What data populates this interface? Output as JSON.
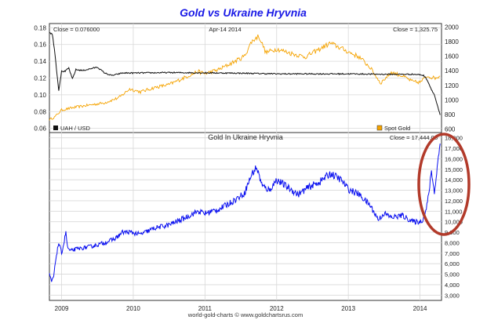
{
  "title": "Gold vs Ukraine Hryvnia",
  "footer": "world-gold-charts © www.goldchartsrus.com",
  "colors": {
    "title": "#1a1ae6",
    "uah_line": "#111111",
    "gold_line": "#f5a300",
    "gold_uah_line": "#0a10f0",
    "grid": "#d8d8d8",
    "highlight_ellipse": "#b23a2a"
  },
  "chart_data": [
    {
      "type": "line",
      "panel": "top",
      "title": "Gold vs Ukraine Hryvnia",
      "info_left": "Close = 0.076000",
      "info_center": "Apr-14  2014",
      "info_right": "Close = 1,325.75",
      "x_tick_labels": [
        "2009",
        "2010",
        "2011",
        "2012",
        "2013",
        "2014"
      ],
      "x_range": [
        2008.83,
        2014.3
      ],
      "y_left": {
        "range": [
          0.055,
          0.185
        ],
        "ticks": [
          0.06,
          0.08,
          0.1,
          0.12,
          0.14,
          0.16,
          0.18
        ],
        "tick_labels": [
          "0.06",
          "0.08",
          "0.10",
          "0.12",
          "0.14",
          "0.16",
          "0.18"
        ]
      },
      "y_right": {
        "range": [
          550,
          2050
        ],
        "ticks": [
          600,
          800,
          1000,
          1200,
          1400,
          1600,
          1800,
          2000
        ],
        "tick_labels": [
          "600",
          "800",
          "1000",
          "1200",
          "1400",
          "1600",
          "1800",
          "2000"
        ]
      },
      "grid": true,
      "legend": [
        {
          "label": "UAH / USD",
          "position": "bottom-left"
        },
        {
          "label": "Spot Gold",
          "position": "bottom-right"
        }
      ],
      "series": [
        {
          "name": "UAH / USD",
          "axis": "left",
          "x": [
            2008.83,
            2008.87,
            2008.9,
            2008.93,
            2008.96,
            2009.0,
            2009.05,
            2009.1,
            2009.15,
            2009.2,
            2009.3,
            2009.4,
            2009.5,
            2009.6,
            2009.7,
            2009.85,
            2010.0,
            2010.5,
            2011.0,
            2011.5,
            2012.0,
            2012.5,
            2013.0,
            2013.5,
            2013.9,
            2014.0,
            2014.05,
            2014.1,
            2014.15,
            2014.2,
            2014.25,
            2014.28
          ],
          "values": [
            0.175,
            0.172,
            0.155,
            0.13,
            0.105,
            0.128,
            0.128,
            0.132,
            0.119,
            0.13,
            0.129,
            0.131,
            0.133,
            0.126,
            0.123,
            0.126,
            0.126,
            0.1265,
            0.1262,
            0.1258,
            0.125,
            0.125,
            0.125,
            0.1245,
            0.1245,
            0.124,
            0.123,
            0.118,
            0.108,
            0.1,
            0.085,
            0.076
          ]
        },
        {
          "name": "Spot Gold",
          "axis": "right",
          "x": [
            2008.83,
            2008.9,
            2009.0,
            2009.2,
            2009.4,
            2009.6,
            2009.8,
            2009.95,
            2010.1,
            2010.3,
            2010.5,
            2010.7,
            2010.9,
            2011.0,
            2011.2,
            2011.4,
            2011.55,
            2011.65,
            2011.75,
            2011.85,
            2012.0,
            2012.2,
            2012.4,
            2012.6,
            2012.75,
            2012.9,
            2013.0,
            2013.15,
            2013.3,
            2013.45,
            2013.6,
            2013.75,
            2013.9,
            2014.0,
            2014.1,
            2014.2,
            2014.28
          ],
          "values": [
            730,
            760,
            860,
            900,
            930,
            960,
            1030,
            1150,
            1110,
            1170,
            1210,
            1300,
            1390,
            1360,
            1420,
            1520,
            1600,
            1800,
            1880,
            1650,
            1700,
            1640,
            1590,
            1700,
            1780,
            1710,
            1660,
            1590,
            1450,
            1230,
            1380,
            1330,
            1250,
            1240,
            1330,
            1300,
            1326
          ]
        }
      ]
    },
    {
      "type": "line",
      "panel": "bottom",
      "title": "Gold In Ukraine Hryvnia",
      "info_right": "Close = 17,444.08",
      "x_tick_labels": [
        "2009",
        "2010",
        "2011",
        "2012",
        "2013",
        "2014"
      ],
      "x_range": [
        2008.83,
        2014.3
      ],
      "y_right": {
        "range": [
          2500,
          18500
        ],
        "ticks": [
          3000,
          4000,
          5000,
          6000,
          7000,
          8000,
          9000,
          10000,
          11000,
          12000,
          13000,
          14000,
          15000,
          16000,
          17000,
          18000
        ],
        "tick_labels": [
          "3,000",
          "4,000",
          "5,000",
          "6,000",
          "7,000",
          "8,000",
          "9,000",
          "10,000",
          "11,000",
          "12,000",
          "13,000",
          "14,000",
          "15,000",
          "16,000",
          "17,000",
          "18,000"
        ]
      },
      "grid": true,
      "annotations": [
        {
          "type": "ellipse",
          "target": "2014 surge"
        }
      ],
      "series": [
        {
          "name": "Gold In Ukraine Hryvnia",
          "x": [
            2008.83,
            2008.86,
            2008.89,
            2008.92,
            2008.96,
            2009.0,
            2009.03,
            2009.06,
            2009.08,
            2009.12,
            2009.2,
            2009.3,
            2009.45,
            2009.6,
            2009.75,
            2009.85,
            2009.95,
            2010.1,
            2010.3,
            2010.5,
            2010.7,
            2010.9,
            2011.0,
            2011.2,
            2011.4,
            2011.55,
            2011.65,
            2011.72,
            2011.8,
            2011.9,
            2012.0,
            2012.15,
            2012.3,
            2012.45,
            2012.6,
            2012.75,
            2012.9,
            2013.0,
            2013.15,
            2013.3,
            2013.42,
            2013.5,
            2013.6,
            2013.75,
            2013.9,
            2014.0,
            2014.04,
            2014.08,
            2014.12,
            2014.16,
            2014.2,
            2014.24,
            2014.28
          ],
          "values": [
            5000,
            4300,
            4800,
            6500,
            8000,
            7000,
            7900,
            9100,
            7600,
            7200,
            7400,
            7500,
            7700,
            8000,
            8400,
            9000,
            9000,
            8800,
            9400,
            9700,
            10300,
            11000,
            10800,
            11200,
            12000,
            12700,
            14500,
            15200,
            13400,
            13000,
            14000,
            13300,
            12600,
            13300,
            13800,
            14600,
            14000,
            13100,
            12600,
            11600,
            10200,
            10800,
            10400,
            10600,
            10000,
            10000,
            10200,
            11000,
            12500,
            14900,
            12700,
            15200,
            17444
          ]
        }
      ]
    }
  ]
}
